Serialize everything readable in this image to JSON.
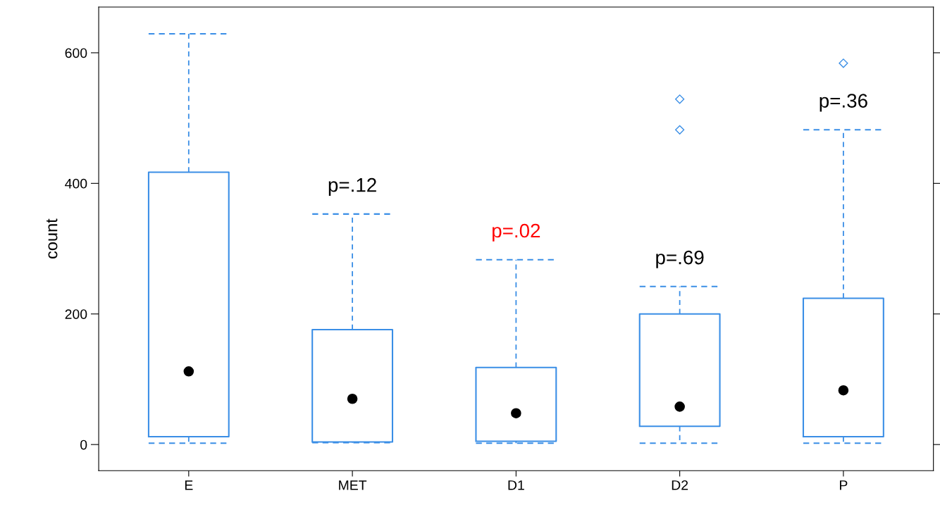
{
  "chart_data": {
    "type": "box",
    "ylabel": "count",
    "categories": [
      "E",
      "MET",
      "D1",
      "D2",
      "P"
    ],
    "color": "#3a8ee6",
    "boxes": [
      {
        "low": 2,
        "q1": 12,
        "median": 112,
        "q3": 417,
        "high": 629
      },
      {
        "low": 3,
        "q1": 4,
        "median": 70,
        "q3": 176,
        "high": 353
      },
      {
        "low": 2,
        "q1": 5,
        "median": 48,
        "q3": 118,
        "high": 283
      },
      {
        "low": 2,
        "q1": 28,
        "median": 58,
        "q3": 200,
        "high": 242,
        "outliers": [
          482,
          529
        ]
      },
      {
        "low": 2,
        "q1": 12,
        "median": 83,
        "q3": 224,
        "high": 482,
        "outliers": [
          584
        ]
      }
    ],
    "ylim": [
      -40,
      670
    ],
    "yticks": [
      0,
      200,
      400,
      600
    ],
    "grid": false,
    "annotations": [
      "p=.12",
      "p=.02",
      "p=.69",
      "p=.36"
    ]
  }
}
